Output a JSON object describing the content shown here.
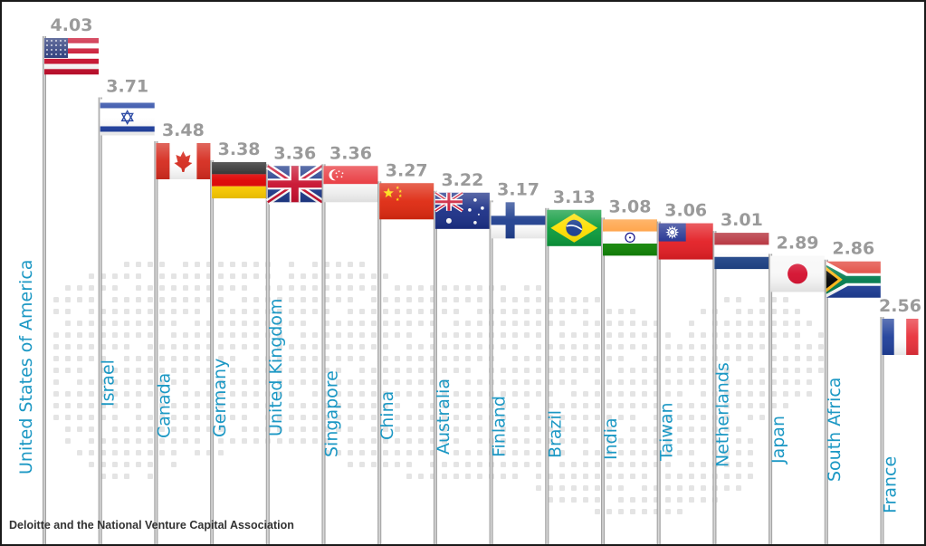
{
  "chart_data": {
    "type": "bar",
    "title": "",
    "xlabel": "",
    "ylabel": "",
    "categories": [
      "United States of America",
      "Israel",
      "Canada",
      "Germany",
      "United Kingdom",
      "Singapore",
      "China",
      "Australia",
      "Finland",
      "Brazil",
      "India",
      "Taiwan",
      "Netherlands",
      "Japan",
      "South Africa",
      "France"
    ],
    "values": [
      4.03,
      3.71,
      3.48,
      3.38,
      3.36,
      3.36,
      3.27,
      3.22,
      3.17,
      3.13,
      3.08,
      3.06,
      3.01,
      2.89,
      2.86,
      2.56
    ],
    "value_labels": [
      "4.03",
      "3.71",
      "3.48",
      "3.38",
      "3.36",
      "3.36",
      "3.27",
      "3.22",
      "3.17",
      "3.13",
      "3.08",
      "3.06",
      "3.01",
      "2.89",
      "2.86",
      "2.56"
    ],
    "marks": "flags on flagpoles",
    "flag_icons": [
      "usa-flag",
      "israel-flag",
      "canada-flag",
      "germany-flag",
      "uk-flag",
      "singapore-flag",
      "china-flag",
      "australia-flag",
      "finland-flag",
      "brazil-flag",
      "india-flag",
      "taiwan-flag",
      "netherlands-flag",
      "japan-flag",
      "south-africa-flag",
      "france-flag"
    ],
    "colors": {
      "label": "#1c98c4",
      "value": "#9a9a9a",
      "pole": "#a8a8a8",
      "map_dots": "#e4e4e4"
    }
  },
  "source": "Deloitte and the National Venture Capital Association"
}
